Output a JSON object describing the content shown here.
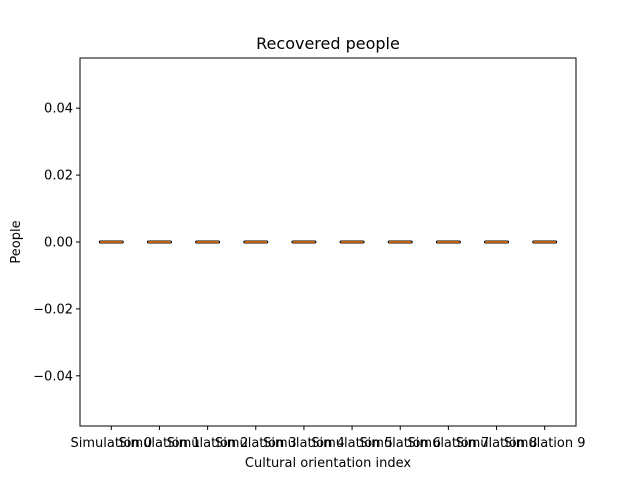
{
  "chart_data": {
    "type": "box",
    "title": "Recovered people",
    "xlabel": "Cultural orientation index",
    "ylabel": "People",
    "categories": [
      "Simulation 0",
      "Simulation 1",
      "Simulation 2",
      "Simulation 3",
      "Simulation 4",
      "Simulation 5",
      "Simulation 6",
      "Simulation 7",
      "Simulation 8",
      "Simulation 9"
    ],
    "boxes": [
      {
        "min": 0,
        "q1": 0,
        "median": 0,
        "q3": 0,
        "max": 0
      },
      {
        "min": 0,
        "q1": 0,
        "median": 0,
        "q3": 0,
        "max": 0
      },
      {
        "min": 0,
        "q1": 0,
        "median": 0,
        "q3": 0,
        "max": 0
      },
      {
        "min": 0,
        "q1": 0,
        "median": 0,
        "q3": 0,
        "max": 0
      },
      {
        "min": 0,
        "q1": 0,
        "median": 0,
        "q3": 0,
        "max": 0
      },
      {
        "min": 0,
        "q1": 0,
        "median": 0,
        "q3": 0,
        "max": 0
      },
      {
        "min": 0,
        "q1": 0,
        "median": 0,
        "q3": 0,
        "max": 0
      },
      {
        "min": 0,
        "q1": 0,
        "median": 0,
        "q3": 0,
        "max": 0
      },
      {
        "min": 0,
        "q1": 0,
        "median": 0,
        "q3": 0,
        "max": 0
      },
      {
        "min": 0,
        "q1": 0,
        "median": 0,
        "q3": 0,
        "max": 0
      }
    ],
    "ylim": [
      -0.055,
      0.055
    ],
    "yticks": [
      -0.04,
      -0.02,
      0.0,
      0.02,
      0.04
    ],
    "ytick_labels": [
      "−0.04",
      "−0.02",
      "0.00",
      "0.02",
      "0.04"
    ],
    "grid": false,
    "colors": {
      "median": "#ff7f0e",
      "box": "#000000"
    }
  }
}
